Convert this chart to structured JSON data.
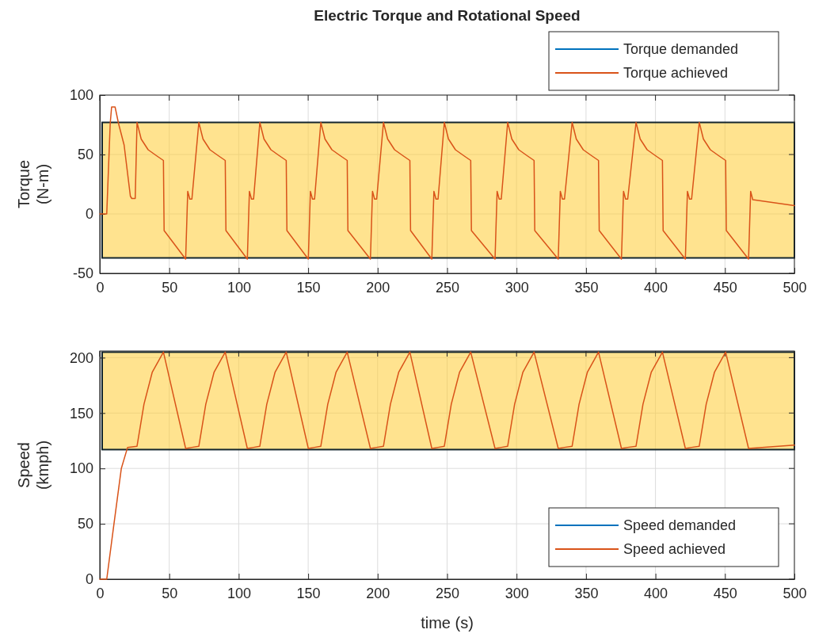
{
  "chart_data": [
    {
      "type": "line",
      "title": "Electric Torque and Rotational Speed",
      "ylabel": "Torque\n(N-m)",
      "xlim": [
        0,
        500
      ],
      "xticks": [
        0,
        50,
        100,
        150,
        200,
        250,
        300,
        350,
        400,
        450,
        500
      ],
      "ylim": [
        -50,
        100
      ],
      "yticks": [
        -50,
        0,
        50,
        100
      ],
      "grid": true,
      "legend": "top right",
      "bands": [
        {
          "axis": "y",
          "from": -37,
          "to": 77,
          "color": "#ffcc33"
        }
      ],
      "series": [
        {
          "name": "Torque demanded",
          "color": "#0072bd"
        },
        {
          "name": "Torque achieved",
          "color": "#d95319",
          "x": [
            0,
            5,
            7.5,
            8.5,
            11,
            13.5,
            17.5,
            22,
            23,
            25.5,
            26.8,
            29.8,
            34.8,
            40.8,
            45.8,
            46.3,
            61.8,
            63.3,
            64.8,
            66.3,
            71.3,
            74.3,
            79.3,
            85.3,
            90.3,
            90.8,
            106.2,
            107.7,
            109.2,
            110.7,
            115.2,
            118.2,
            123.2,
            129.2,
            134.2,
            134.7,
            150.1,
            151.6,
            153.1,
            154.6,
            159.1,
            162.1,
            167.1,
            173.1,
            178.1,
            178.6,
            194.8,
            196.3,
            197.8,
            199.3,
            204.2,
            207.2,
            212.2,
            218.2,
            223.2,
            223.7,
            239,
            240.5,
            242,
            243.5,
            248,
            251,
            256,
            262,
            267,
            267.5,
            284.5,
            286,
            287.5,
            289,
            293.6,
            296.6,
            301.6,
            307.6,
            312.6,
            313.1,
            330,
            331.5,
            333,
            334.5,
            340,
            343,
            348,
            354,
            359,
            359.5,
            375.5,
            377,
            378.5,
            380,
            386,
            389,
            394,
            400,
            405,
            405.5,
            421.5,
            423,
            424.5,
            426,
            431.5,
            434.5,
            439.5,
            445.5,
            450.5,
            451,
            467,
            468.5,
            470,
            500
          ],
          "values": [
            0,
            0,
            76,
            90,
            90,
            76,
            58,
            15,
            13,
            13,
            77,
            63,
            54,
            49,
            45,
            -14,
            -38,
            19,
            12.5,
            12.5,
            77,
            63,
            54,
            49,
            45,
            -14,
            -38,
            19,
            12.5,
            12.5,
            77,
            63,
            54,
            49,
            45,
            -14,
            -38,
            19,
            12.5,
            12.5,
            77,
            63,
            54,
            49,
            45,
            -14,
            -38,
            19,
            12.5,
            12.5,
            77,
            63,
            54,
            49,
            45,
            -14,
            -38,
            19,
            12.5,
            12.5,
            77,
            63,
            54,
            49,
            45,
            -14,
            -38,
            19,
            12.5,
            12.5,
            77,
            63,
            54,
            49,
            45,
            -14,
            -38,
            19,
            12.5,
            12.5,
            77,
            63,
            54,
            49,
            45,
            -14,
            -38,
            19,
            12.5,
            12.5,
            77,
            63,
            54,
            49,
            45,
            -14,
            -38,
            19,
            12.5,
            12.5,
            77,
            63,
            54,
            49,
            45,
            -14,
            -38,
            19,
            12,
            7
          ]
        }
      ]
    },
    {
      "type": "line",
      "xlabel": "time (s)",
      "ylabel": "Speed\n(kmph)",
      "xlim": [
        0,
        500
      ],
      "xticks": [
        0,
        50,
        100,
        150,
        200,
        250,
        300,
        350,
        400,
        450,
        500
      ],
      "ylim": [
        0,
        206
      ],
      "yticks": [
        0,
        50,
        100,
        150,
        200
      ],
      "grid": true,
      "legend": "bottom right",
      "bands": [
        {
          "axis": "y",
          "from": 117,
          "to": 205,
          "color": "#ffcc33"
        }
      ],
      "series": [
        {
          "name": "Speed demanded",
          "color": "#0072bd"
        },
        {
          "name": "Speed achieved",
          "color": "#d95319",
          "x": [
            0,
            5,
            10,
            15.5,
            20,
            26.8,
            31.8,
            37.8,
            45.8,
            61.8,
            66.3,
            71.3,
            76.3,
            82.3,
            90.3,
            106.2,
            110.7,
            115.2,
            120.2,
            126.2,
            134.2,
            150.1,
            154.6,
            159.1,
            164.1,
            170.1,
            178.1,
            194.8,
            199.3,
            204.2,
            209.2,
            215.2,
            223.2,
            239,
            243.5,
            248,
            253,
            259,
            267,
            284.5,
            289,
            293.6,
            298.6,
            304.6,
            312.6,
            330,
            334.5,
            340,
            345,
            351,
            359,
            375.5,
            380,
            386,
            391,
            397,
            405,
            421.5,
            426,
            431.5,
            436.5,
            442.5,
            450.5,
            467,
            500
          ],
          "values": [
            0,
            0,
            48,
            100,
            119,
            120,
            158,
            187,
            205,
            118,
            119,
            120,
            158,
            187,
            205,
            118,
            119,
            120,
            158,
            187,
            205,
            118,
            119,
            120,
            158,
            187,
            205,
            118,
            119,
            120,
            158,
            187,
            205,
            118,
            119,
            120,
            158,
            187,
            205,
            118,
            119,
            120,
            158,
            187,
            205,
            118,
            119,
            120,
            158,
            187,
            205,
            118,
            119,
            120,
            158,
            187,
            205,
            118,
            119,
            120,
            158,
            187,
            205,
            118,
            121
          ]
        }
      ]
    }
  ]
}
